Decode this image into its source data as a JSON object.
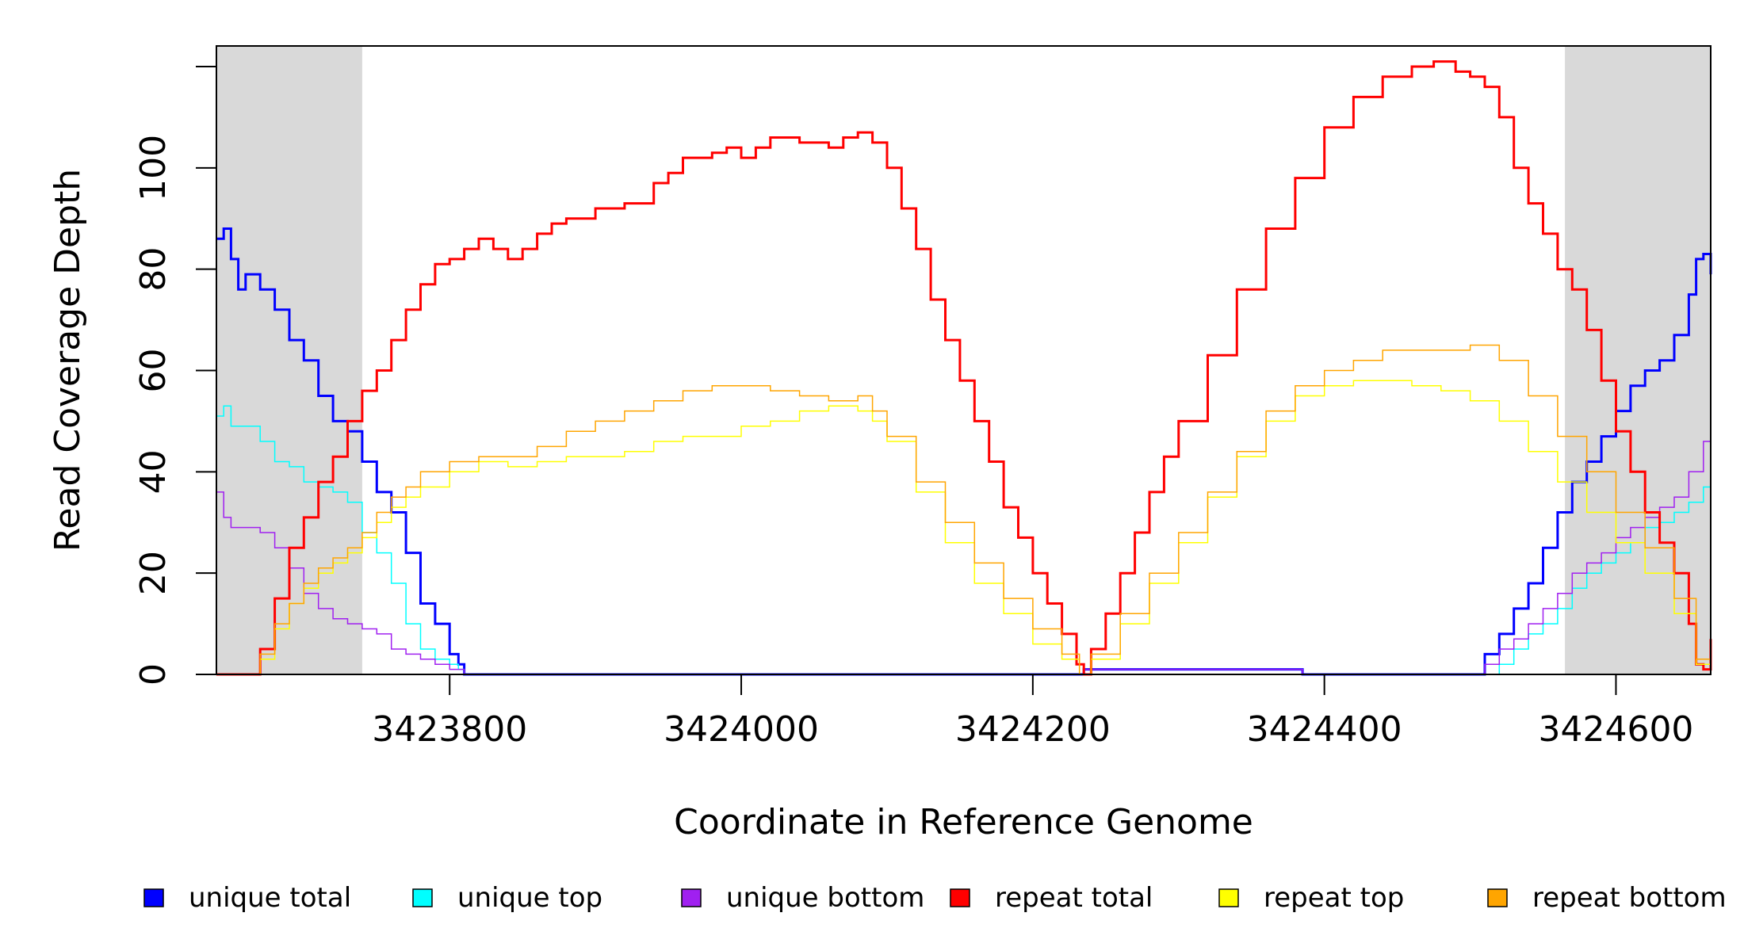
{
  "chart_data": {
    "type": "line",
    "title": "",
    "xlabel": "Coordinate in Reference Genome",
    "ylabel": "Read Coverage Depth",
    "xlim": [
      3423640,
      3424665
    ],
    "ylim": [
      0,
      120
    ],
    "x_ticks": [
      3423800,
      3424000,
      3424200,
      3424400,
      3424600
    ],
    "x_tick_labels": [
      "3423800",
      "3424000",
      "3424200",
      "3424400",
      "3424600"
    ],
    "y_ticks": [
      0,
      20,
      40,
      60,
      80,
      100
    ],
    "y_tick_labels": [
      "0",
      "20",
      "40",
      "60",
      "80",
      "100"
    ],
    "shaded_regions": [
      {
        "x": [
          3423640,
          3423740
        ],
        "color": "#d9d9d9"
      },
      {
        "x": [
          3424565,
          3424665
        ],
        "color": "#d9d9d9"
      }
    ],
    "grid": false,
    "legend_position": "bottom",
    "series": [
      {
        "name": "unique total",
        "color": "#0000ff",
        "width": 3,
        "x": [
          3423640,
          3423645,
          3423650,
          3423655,
          3423660,
          3423670,
          3423680,
          3423690,
          3423700,
          3423710,
          3423720,
          3423730,
          3423740,
          3423750,
          3423760,
          3423770,
          3423780,
          3423790,
          3423800,
          3423806,
          3423810,
          3424230,
          3424235,
          3424380,
          3424385,
          3424505,
          3424510,
          3424520,
          3424530,
          3424540,
          3424550,
          3424560,
          3424570,
          3424580,
          3424590,
          3424600,
          3424610,
          3424620,
          3424630,
          3424640,
          3424650,
          3424655,
          3424660,
          3424665
        ],
        "y": [
          86,
          88,
          82,
          76,
          79,
          76,
          72,
          66,
          62,
          55,
          50,
          48,
          42,
          36,
          32,
          24,
          14,
          10,
          4,
          2,
          0,
          0,
          1,
          1,
          0,
          0,
          4,
          8,
          13,
          18,
          25,
          32,
          38,
          42,
          47,
          52,
          57,
          60,
          62,
          67,
          75,
          82,
          83,
          79
        ]
      },
      {
        "name": "unique top",
        "color": "#00ffff",
        "width": 1.5,
        "x": [
          3423640,
          3423645,
          3423650,
          3423660,
          3423670,
          3423680,
          3423690,
          3423700,
          3423710,
          3423720,
          3423730,
          3423740,
          3423750,
          3423760,
          3423770,
          3423780,
          3423790,
          3423800,
          3423806,
          3423810,
          3424230,
          3424510,
          3424520,
          3424530,
          3424540,
          3424550,
          3424560,
          3424570,
          3424580,
          3424590,
          3424600,
          3424610,
          3424620,
          3424630,
          3424640,
          3424650,
          3424660,
          3424665
        ],
        "y": [
          51,
          53,
          49,
          49,
          46,
          42,
          41,
          38,
          37,
          36,
          34,
          28,
          24,
          18,
          10,
          5,
          3,
          2,
          1,
          0,
          0,
          0,
          2,
          5,
          8,
          10,
          13,
          17,
          20,
          22,
          24,
          26,
          29,
          30,
          32,
          34,
          37,
          37
        ]
      },
      {
        "name": "unique bottom",
        "color": "#a020f0",
        "width": 1.5,
        "x": [
          3423640,
          3423645,
          3423650,
          3423660,
          3423670,
          3423680,
          3423690,
          3423700,
          3423710,
          3423720,
          3423730,
          3423740,
          3423750,
          3423760,
          3423770,
          3423780,
          3423790,
          3423800,
          3423806,
          3423810,
          3424230,
          3424235,
          3424380,
          3424385,
          3424505,
          3424510,
          3424520,
          3424530,
          3424540,
          3424550,
          3424560,
          3424570,
          3424580,
          3424590,
          3424600,
          3424610,
          3424620,
          3424630,
          3424640,
          3424650,
          3424660,
          3424665
        ],
        "y": [
          36,
          31,
          29,
          29,
          28,
          25,
          21,
          16,
          13,
          11,
          10,
          9,
          8,
          5,
          4,
          3,
          2,
          1,
          1,
          0,
          0,
          1,
          1,
          0,
          0,
          2,
          5,
          7,
          10,
          13,
          16,
          20,
          22,
          24,
          27,
          29,
          31,
          33,
          35,
          40,
          46,
          43
        ]
      },
      {
        "name": "repeat total",
        "color": "#ff0000",
        "width": 3,
        "x": [
          3423640,
          3423660,
          3423670,
          3423680,
          3423690,
          3423700,
          3423710,
          3423720,
          3423730,
          3423740,
          3423750,
          3423760,
          3423770,
          3423780,
          3423790,
          3423800,
          3423810,
          3423820,
          3423830,
          3423840,
          3423850,
          3423860,
          3423870,
          3423880,
          3423900,
          3423920,
          3423940,
          3423950,
          3423960,
          3423980,
          3423990,
          3424000,
          3424010,
          3424020,
          3424040,
          3424060,
          3424070,
          3424080,
          3424090,
          3424100,
          3424110,
          3424120,
          3424130,
          3424140,
          3424150,
          3424160,
          3424170,
          3424180,
          3424190,
          3424200,
          3424210,
          3424220,
          3424230,
          3424235,
          3424240,
          3424250,
          3424260,
          3424270,
          3424280,
          3424290,
          3424300,
          3424320,
          3424340,
          3424360,
          3424380,
          3424400,
          3424420,
          3424440,
          3424460,
          3424475,
          3424490,
          3424500,
          3424510,
          3424520,
          3424530,
          3424540,
          3424550,
          3424560,
          3424570,
          3424580,
          3424590,
          3424600,
          3424610,
          3424620,
          3424630,
          3424640,
          3424650,
          3424655,
          3424660,
          3424665
        ],
        "y": [
          0,
          0,
          5,
          15,
          25,
          31,
          38,
          43,
          50,
          56,
          60,
          66,
          72,
          77,
          81,
          82,
          84,
          86,
          84,
          82,
          84,
          87,
          89,
          90,
          92,
          93,
          97,
          99,
          102,
          103,
          104,
          102,
          104,
          106,
          105,
          104,
          106,
          107,
          105,
          100,
          92,
          84,
          74,
          66,
          58,
          50,
          42,
          33,
          27,
          20,
          14,
          8,
          2,
          0,
          5,
          12,
          20,
          28,
          36,
          43,
          50,
          63,
          76,
          88,
          98,
          108,
          114,
          118,
          120,
          121,
          119,
          118,
          116,
          110,
          100,
          93,
          87,
          80,
          76,
          68,
          58,
          48,
          40,
          32,
          26,
          20,
          10,
          2,
          1,
          7
        ]
      },
      {
        "name": "repeat top",
        "color": "#ffff00",
        "width": 1.5,
        "x": [
          3423640,
          3423660,
          3423670,
          3423680,
          3423690,
          3423700,
          3423710,
          3423720,
          3423730,
          3423740,
          3423750,
          3423760,
          3423770,
          3423780,
          3423800,
          3423820,
          3423840,
          3423860,
          3423880,
          3423900,
          3423920,
          3423940,
          3423960,
          3423980,
          3424000,
          3424020,
          3424040,
          3424060,
          3424080,
          3424090,
          3424100,
          3424120,
          3424140,
          3424160,
          3424180,
          3424200,
          3424220,
          3424232,
          3424240,
          3424260,
          3424280,
          3424300,
          3424320,
          3424340,
          3424360,
          3424380,
          3424400,
          3424420,
          3424440,
          3424460,
          3424480,
          3424500,
          3424520,
          3424540,
          3424560,
          3424580,
          3424600,
          3424620,
          3424640,
          3424655,
          3424665
        ],
        "y": [
          0,
          0,
          3,
          9,
          14,
          17,
          20,
          22,
          24,
          27,
          30,
          33,
          35,
          37,
          40,
          42,
          41,
          42,
          43,
          43,
          44,
          46,
          47,
          47,
          49,
          50,
          52,
          53,
          52,
          50,
          46,
          36,
          26,
          18,
          12,
          6,
          3,
          0,
          3,
          10,
          18,
          26,
          35,
          43,
          50,
          55,
          57,
          58,
          58,
          57,
          56,
          54,
          50,
          44,
          38,
          32,
          26,
          20,
          12,
          2,
          2
        ]
      },
      {
        "name": "repeat bottom",
        "color": "#ffa500",
        "width": 1.5,
        "x": [
          3423640,
          3423660,
          3423670,
          3423680,
          3423690,
          3423700,
          3423710,
          3423720,
          3423730,
          3423740,
          3423750,
          3423760,
          3423770,
          3423780,
          3423800,
          3423820,
          3423840,
          3423860,
          3423880,
          3423900,
          3423920,
          3423940,
          3423960,
          3423980,
          3424000,
          3424020,
          3424040,
          3424060,
          3424080,
          3424090,
          3424100,
          3424120,
          3424140,
          3424160,
          3424180,
          3424200,
          3424220,
          3424232,
          3424240,
          3424260,
          3424280,
          3424300,
          3424320,
          3424340,
          3424360,
          3424380,
          3424400,
          3424420,
          3424440,
          3424460,
          3424480,
          3424500,
          3424520,
          3424540,
          3424560,
          3424580,
          3424600,
          3424620,
          3424640,
          3424655,
          3424665
        ],
        "y": [
          0,
          0,
          4,
          10,
          14,
          18,
          21,
          23,
          25,
          28,
          32,
          35,
          37,
          40,
          42,
          43,
          43,
          45,
          48,
          50,
          52,
          54,
          56,
          57,
          57,
          56,
          55,
          54,
          55,
          52,
          47,
          38,
          30,
          22,
          15,
          9,
          4,
          0,
          4,
          12,
          20,
          28,
          36,
          44,
          52,
          57,
          60,
          62,
          64,
          64,
          64,
          65,
          62,
          55,
          47,
          40,
          32,
          25,
          15,
          3,
          4
        ]
      }
    ]
  }
}
